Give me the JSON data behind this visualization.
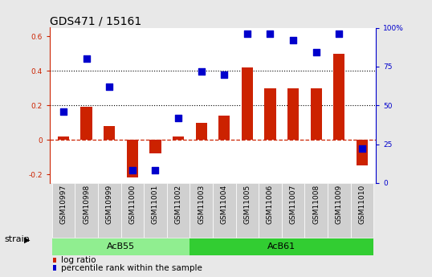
{
  "title": "GDS471 / 15161",
  "samples": [
    "GSM10997",
    "GSM10998",
    "GSM10999",
    "GSM11000",
    "GSM11001",
    "GSM11002",
    "GSM11003",
    "GSM11004",
    "GSM11005",
    "GSM11006",
    "GSM11007",
    "GSM11008",
    "GSM11009",
    "GSM11010"
  ],
  "log_ratio": [
    0.02,
    0.19,
    0.08,
    -0.22,
    -0.08,
    0.02,
    0.1,
    0.14,
    0.42,
    0.3,
    0.3,
    0.3,
    0.5,
    -0.15
  ],
  "percentile_rank": [
    46,
    80,
    62,
    8,
    8,
    42,
    72,
    70,
    96,
    96,
    92,
    84,
    96,
    22
  ],
  "groups": [
    {
      "label": "AcB55",
      "start": 0,
      "end": 5,
      "color": "#90ee90"
    },
    {
      "label": "AcB61",
      "start": 6,
      "end": 13,
      "color": "#32cd32"
    }
  ],
  "group_label": "strain",
  "ylim_left": [
    -0.25,
    0.65
  ],
  "ylim_right": [
    0,
    100
  ],
  "yticks_left": [
    -0.2,
    0.0,
    0.2,
    0.4,
    0.6
  ],
  "yticks_right": [
    0,
    25,
    50,
    75,
    100
  ],
  "dotted_hlines": [
    0.2,
    0.4
  ],
  "zero_hline_color": "#cc2200",
  "bar_color": "#cc2200",
  "dot_color": "#0000cc",
  "bar_width": 0.5,
  "dot_size": 30,
  "title_fontsize": 10,
  "tick_fontsize": 6.5,
  "label_fontsize": 8,
  "legend_fontsize": 7.5,
  "ax_left_color": "#cc2200",
  "ax_right_color": "#0000cc",
  "background_color": "#e8e8e8",
  "plot_bg_color": "#ffffff",
  "cell_bg_color": "#d0d0d0"
}
